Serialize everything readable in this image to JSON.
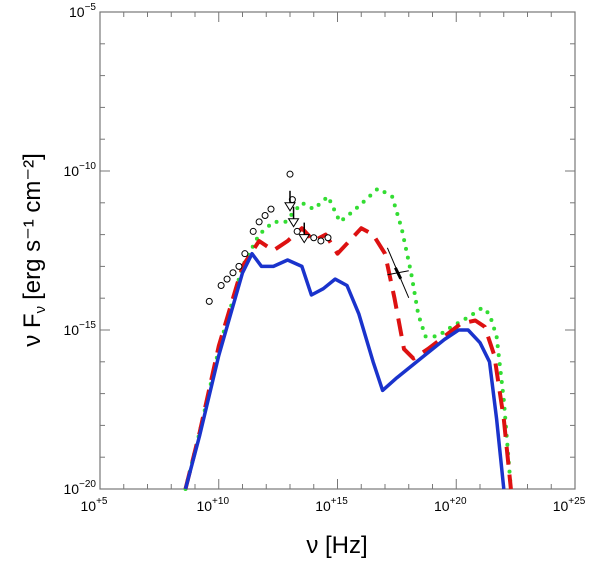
{
  "chart_data": {
    "type": "line",
    "xlabel": "ν [Hz]",
    "ylabel": "ν F",
    "ylabel_sub": "ν",
    "ylabel_units": "[erg s⁻¹ cm⁻²]",
    "x_scale": "log10",
    "y_scale": "log10",
    "xlim_log10": [
      5,
      25
    ],
    "ylim_log10": [
      -20,
      -5
    ],
    "x_ticks": [
      {
        "value": 5,
        "base": "10",
        "exp": "+5"
      },
      {
        "value": 10,
        "base": "10",
        "exp": "+10"
      },
      {
        "value": 15,
        "base": "10",
        "exp": "+15"
      },
      {
        "value": 20,
        "base": "10",
        "exp": "+20"
      },
      {
        "value": 25,
        "base": "10",
        "exp": "+25"
      }
    ],
    "y_ticks": [
      {
        "value": -5,
        "base": "10",
        "exp": "−5"
      },
      {
        "value": -10,
        "base": "10",
        "exp": "−10"
      },
      {
        "value": -15,
        "base": "10",
        "exp": "−15"
      },
      {
        "value": -20,
        "base": "10",
        "exp": "−20"
      }
    ],
    "series": [
      {
        "name": "model-dotted",
        "color": "#33dd33",
        "style": "dotted",
        "points": [
          [
            8.6,
            -20
          ],
          [
            9.2,
            -18.2
          ],
          [
            10.0,
            -15.6
          ],
          [
            11.0,
            -13.0
          ],
          [
            11.7,
            -12.0
          ],
          [
            12.3,
            -11.6
          ],
          [
            12.8,
            -11.6
          ],
          [
            13.5,
            -11.0
          ],
          [
            14.0,
            -11.2
          ],
          [
            14.6,
            -10.8
          ],
          [
            15.1,
            -11.6
          ],
          [
            15.6,
            -11.3
          ],
          [
            16.2,
            -10.9
          ],
          [
            16.7,
            -10.55
          ],
          [
            17.3,
            -10.8
          ],
          [
            17.7,
            -11.8
          ],
          [
            18.1,
            -13.2
          ],
          [
            18.4,
            -14.5
          ],
          [
            18.7,
            -15.2
          ],
          [
            19.2,
            -15.2
          ],
          [
            19.8,
            -14.9
          ],
          [
            20.5,
            -14.6
          ],
          [
            21.1,
            -14.3
          ],
          [
            21.4,
            -14.5
          ],
          [
            21.7,
            -15.2
          ],
          [
            22.0,
            -17.2
          ],
          [
            22.3,
            -20
          ]
        ]
      },
      {
        "name": "model-dashed",
        "color": "#dd1111",
        "style": "dashed",
        "points": [
          [
            8.6,
            -20
          ],
          [
            9.2,
            -18.2
          ],
          [
            10.0,
            -15.5
          ],
          [
            11.0,
            -13.0
          ],
          [
            11.7,
            -12.2
          ],
          [
            12.3,
            -12.5
          ],
          [
            12.9,
            -12.2
          ],
          [
            13.5,
            -11.8
          ],
          [
            14.0,
            -12.2
          ],
          [
            14.5,
            -12.0
          ],
          [
            15.0,
            -12.6
          ],
          [
            15.5,
            -12.2
          ],
          [
            16.0,
            -11.8
          ],
          [
            16.5,
            -12.0
          ],
          [
            17.0,
            -12.6
          ],
          [
            17.4,
            -14.0
          ],
          [
            17.8,
            -15.6
          ],
          [
            18.2,
            -15.9
          ],
          [
            18.8,
            -15.6
          ],
          [
            19.5,
            -15.2
          ],
          [
            20.2,
            -14.8
          ],
          [
            20.8,
            -14.7
          ],
          [
            21.2,
            -14.9
          ],
          [
            21.6,
            -15.8
          ],
          [
            22.0,
            -17.8
          ],
          [
            22.3,
            -20
          ]
        ]
      },
      {
        "name": "model-solid",
        "color": "#1a33cc",
        "style": "solid",
        "points": [
          [
            8.6,
            -20
          ],
          [
            9.2,
            -18.3
          ],
          [
            10.0,
            -15.8
          ],
          [
            11.0,
            -13.2
          ],
          [
            11.4,
            -12.6
          ],
          [
            11.8,
            -13.0
          ],
          [
            12.3,
            -13.0
          ],
          [
            12.9,
            -12.8
          ],
          [
            13.5,
            -13.0
          ],
          [
            13.9,
            -13.9
          ],
          [
            14.4,
            -13.7
          ],
          [
            14.9,
            -13.4
          ],
          [
            15.4,
            -13.6
          ],
          [
            15.9,
            -14.5
          ],
          [
            16.5,
            -16.0
          ],
          [
            16.9,
            -16.9
          ],
          [
            17.5,
            -16.5
          ],
          [
            18.5,
            -15.9
          ],
          [
            19.5,
            -15.3
          ],
          [
            20.1,
            -15.0
          ],
          [
            20.5,
            -15.0
          ],
          [
            21.0,
            -15.4
          ],
          [
            21.4,
            -16.0
          ],
          [
            21.7,
            -17.8
          ],
          [
            22.0,
            -20
          ]
        ]
      }
    ],
    "data_points": [
      {
        "x": 9.6,
        "y": -14.1
      },
      {
        "x": 10.1,
        "y": -13.6
      },
      {
        "x": 10.35,
        "y": -13.4
      },
      {
        "x": 10.6,
        "y": -13.2
      },
      {
        "x": 10.85,
        "y": -13.0
      },
      {
        "x": 11.1,
        "y": -12.6
      },
      {
        "x": 11.45,
        "y": -11.9
      },
      {
        "x": 11.7,
        "y": -11.6
      },
      {
        "x": 11.95,
        "y": -11.4
      },
      {
        "x": 12.2,
        "y": -11.2
      },
      {
        "x": 13.0,
        "y": -10.1
      },
      {
        "x": 13.1,
        "y": -10.9
      },
      {
        "x": 13.3,
        "y": -11.9
      },
      {
        "x": 14.0,
        "y": -12.1
      },
      {
        "x": 14.3,
        "y": -12.2
      },
      {
        "x": 14.6,
        "y": -12.1
      }
    ],
    "upper_limits": [
      {
        "x": 13.0,
        "y": -11.0
      },
      {
        "x": 13.15,
        "y": -11.5
      },
      {
        "x": 13.6,
        "y": -12.0
      }
    ],
    "xray_bowtie": {
      "x": [
        17.1,
        18.0
      ],
      "y_center": -13.2
    }
  }
}
